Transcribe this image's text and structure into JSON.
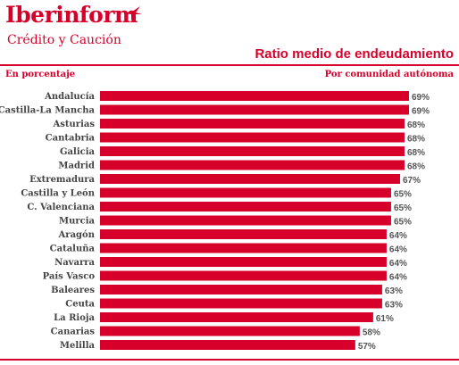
{
  "brand": {
    "name": "Iberinform",
    "tagline": "Crédito y Caución",
    "color": "#d6002a"
  },
  "chart_data": {
    "type": "bar",
    "orientation": "horizontal",
    "title": "Ratio medio de endeudamiento",
    "subtitle": "Por comunidad autónoma",
    "ylabel": "En porcentaje",
    "xlim": [
      0,
      70
    ],
    "bar_color": "#d6002a",
    "value_suffix": "%",
    "categories": [
      "Andalucía",
      "Castilla-La Mancha",
      "Asturias",
      "Cantabria",
      "Galicia",
      "Madrid",
      "Extremadura",
      "Castilla y León",
      "C. Valenciana",
      "Murcia",
      "Aragón",
      "Cataluña",
      "Navarra",
      "País Vasco",
      "Baleares",
      "Ceuta",
      "La Rioja",
      "Canarias",
      "Melilla"
    ],
    "values": [
      69,
      69,
      68,
      68,
      68,
      68,
      67,
      65,
      65,
      65,
      64,
      64,
      64,
      64,
      63,
      63,
      61,
      58,
      57
    ]
  }
}
